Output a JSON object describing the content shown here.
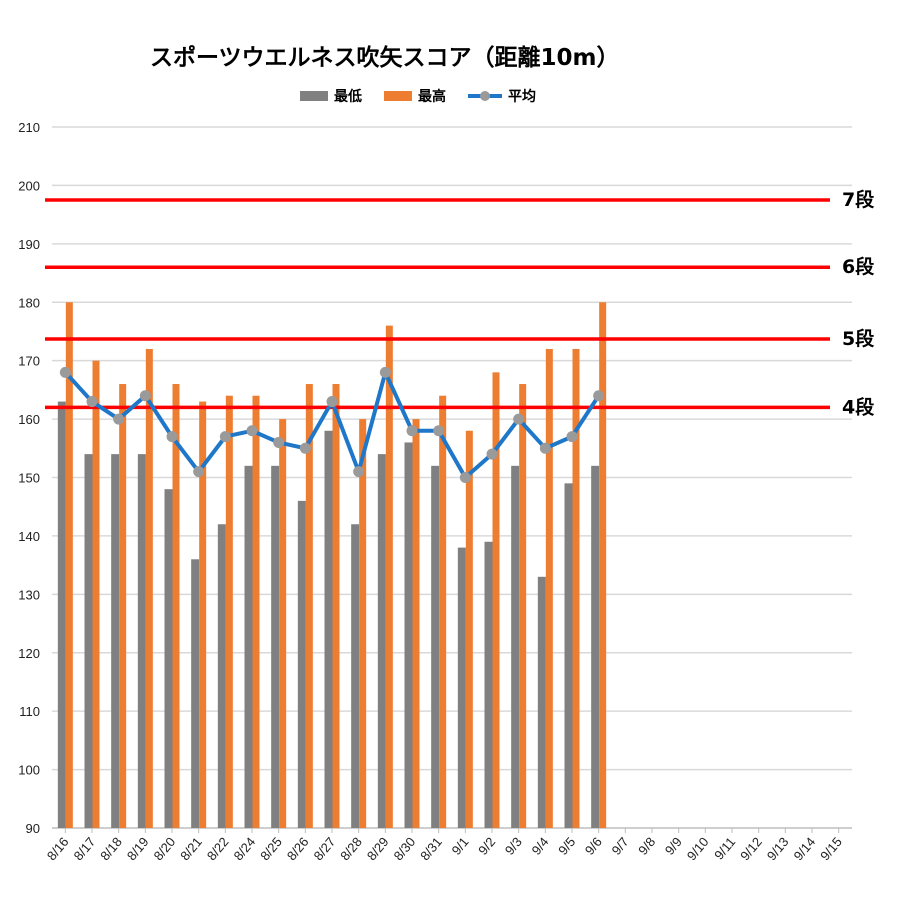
{
  "chart_data": {
    "type": "bar",
    "title": "スポーツウエルネス吹矢スコア（距離10m）",
    "categories": [
      "8/16",
      "8/17",
      "8/18",
      "8/19",
      "8/20",
      "8/21",
      "8/22",
      "8/24",
      "8/25",
      "8/26",
      "8/27",
      "8/28",
      "8/29",
      "8/30",
      "8/31",
      "9/1",
      "9/2",
      "9/3",
      "9/4",
      "9/5",
      "9/6",
      "9/7",
      "9/8",
      "9/9",
      "9/10",
      "9/11",
      "9/12",
      "9/13",
      "9/14",
      "9/15"
    ],
    "series": [
      {
        "name": "最低",
        "type": "bar",
        "color": "#808080",
        "values": [
          163,
          154,
          154,
          154,
          148,
          136,
          142,
          152,
          152,
          146,
          158,
          142,
          154,
          156,
          152,
          138,
          139,
          152,
          133,
          149,
          152,
          null,
          null,
          null,
          null,
          null,
          null,
          null,
          null,
          null
        ]
      },
      {
        "name": "最高",
        "type": "bar",
        "color": "#ed7d31",
        "values": [
          180,
          170,
          166,
          172,
          166,
          163,
          164,
          164,
          160,
          166,
          166,
          160,
          176,
          160,
          164,
          158,
          168,
          166,
          172,
          172,
          180,
          null,
          null,
          null,
          null,
          null,
          null,
          null,
          null,
          null
        ]
      },
      {
        "name": "平均",
        "type": "line",
        "color": "#1f77c9",
        "marker_color": "#9a9a9a",
        "values": [
          168,
          163,
          160,
          164,
          157,
          151,
          157,
          158,
          156,
          155,
          163,
          151,
          168,
          158,
          158,
          150,
          154,
          160,
          155,
          157,
          164,
          null,
          null,
          null,
          null,
          null,
          null,
          null,
          null,
          null
        ]
      }
    ],
    "ylim": [
      90,
      210
    ],
    "yticks": [
      "90",
      "100",
      "110",
      "120",
      "130",
      "140",
      "150",
      "160",
      "170",
      "180",
      "190",
      "200",
      "210"
    ],
    "grid": true,
    "legend_position": "top",
    "reference_lines": [
      {
        "label": "7段",
        "value": 197.5,
        "color": "#ff0000"
      },
      {
        "label": "6段",
        "value": 186,
        "color": "#ff0000"
      },
      {
        "label": "5段",
        "value": 173.7,
        "color": "#ff0000"
      },
      {
        "label": "4段",
        "value": 162,
        "color": "#ff0000"
      }
    ]
  }
}
